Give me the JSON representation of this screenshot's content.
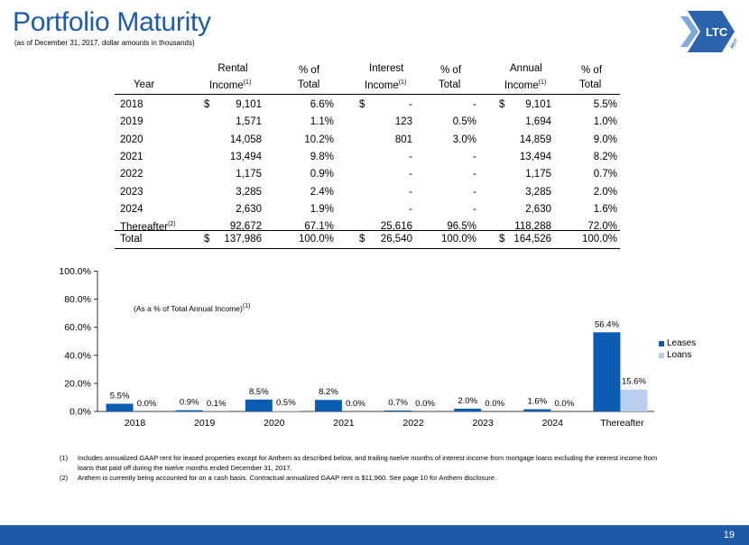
{
  "header": {
    "title": "Portfolio Maturity",
    "subtitle": "(as of December 31, 2017, dollar amounts in thousands)",
    "logo_text": "LTC",
    "logo_sub": "REIT"
  },
  "table": {
    "headers": {
      "year": "Year",
      "rental_1": "Rental",
      "rental_2": "Income",
      "pct1_1": "% of",
      "pct1_2": "Total",
      "interest_1": "Interest",
      "interest_2": "Income",
      "pct2_1": "% of",
      "pct2_2": "Total",
      "annual_1": "Annual",
      "annual_2": "Income",
      "pct3_1": "% of",
      "pct3_2": "Total",
      "note_mark": "(1)"
    },
    "rows": [
      {
        "year": "2018",
        "rd": "$",
        "rental": "9,101",
        "rp": "6.6%",
        "id": "$",
        "interest": "-",
        "ip": "-",
        "ad": "$",
        "annual": "9,101",
        "ap": "5.5%"
      },
      {
        "year": "2019",
        "rd": "",
        "rental": "1,571",
        "rp": "1.1%",
        "id": "",
        "interest": "123",
        "ip": "0.5%",
        "ad": "",
        "annual": "1,694",
        "ap": "1.0%"
      },
      {
        "year": "2020",
        "rd": "",
        "rental": "14,058",
        "rp": "10.2%",
        "id": "",
        "interest": "801",
        "ip": "3.0%",
        "ad": "",
        "annual": "14,859",
        "ap": "9.0%"
      },
      {
        "year": "2021",
        "rd": "",
        "rental": "13,494",
        "rp": "9.8%",
        "id": "",
        "interest": "-",
        "ip": "-",
        "ad": "",
        "annual": "13,494",
        "ap": "8.2%"
      },
      {
        "year": "2022",
        "rd": "",
        "rental": "1,175",
        "rp": "0.9%",
        "id": "",
        "interest": "-",
        "ip": "-",
        "ad": "",
        "annual": "1,175",
        "ap": "0.7%"
      },
      {
        "year": "2023",
        "rd": "",
        "rental": "3,285",
        "rp": "2.4%",
        "id": "",
        "interest": "-",
        "ip": "-",
        "ad": "",
        "annual": "3,285",
        "ap": "2.0%"
      },
      {
        "year": "2024",
        "rd": "",
        "rental": "2,630",
        "rp": "1.9%",
        "id": "",
        "interest": "-",
        "ip": "-",
        "ad": "",
        "annual": "2,630",
        "ap": "1.6%"
      },
      {
        "year": "Thereafter",
        "year_sup": "(2)",
        "rd": "",
        "rental": "92,672",
        "rp": "67.1%",
        "id": "",
        "interest": "25,616",
        "ip": "96.5%",
        "ad": "",
        "annual": "118,288",
        "ap": "72.0%"
      }
    ],
    "total": {
      "year": "Total",
      "rd": "$",
      "rental": "137,986",
      "rp": "100.0%",
      "id": "$",
      "interest": "26,540",
      "ip": "100.0%",
      "ad": "$",
      "annual": "164,526",
      "ap": "100.0%"
    }
  },
  "chart_data": {
    "type": "bar",
    "annotation": "(As a % of Total Annual Income)",
    "annotation_sup": "(1)",
    "categories": [
      "2018",
      "2019",
      "2020",
      "2021",
      "2022",
      "2023",
      "2024",
      "Thereafter"
    ],
    "series": [
      {
        "name": "Leases",
        "values": [
          5.5,
          0.9,
          8.5,
          8.2,
          0.7,
          2.0,
          1.6,
          56.4
        ],
        "labels": [
          "5.5%",
          "0.9%",
          "8.5%",
          "8.2%",
          "0.7%",
          "2.0%",
          "1.6%",
          "56.4%"
        ],
        "color": "#0b5db3"
      },
      {
        "name": "Loans",
        "values": [
          0.0,
          0.1,
          0.5,
          0.0,
          0.0,
          0.0,
          0.0,
          15.6
        ],
        "labels": [
          "0.0%",
          "0.1%",
          "0.5%",
          "0.0%",
          "0.0%",
          "0.0%",
          "0.0%",
          "15.6%"
        ],
        "color": "#b9cdef"
      }
    ],
    "ylim": [
      0,
      100
    ],
    "yticks": [
      "0.0%",
      "20.0%",
      "40.0%",
      "60.0%",
      "80.0%",
      "100.0%"
    ],
    "ytick_values": [
      0,
      20,
      40,
      60,
      80,
      100
    ],
    "legend_position": "right",
    "grid": false
  },
  "footnotes": [
    {
      "num": "(1)",
      "text": "Includes annualized GAAP rent for leased properties except for Anthem as described below, and trailing twelve months of interest income from mortgage loans excluding the interest income from loans that paid off during the twelve months ended December 31, 2017."
    },
    {
      "num": "(2)",
      "text": "Anthem is currently being accounted for on a cash basis. Contractual annualized GAAP rent is $11,960. See page 10 for Anthem disclosure."
    }
  ],
  "footer": {
    "page_number": "19",
    "color": "#1f5aa6"
  }
}
